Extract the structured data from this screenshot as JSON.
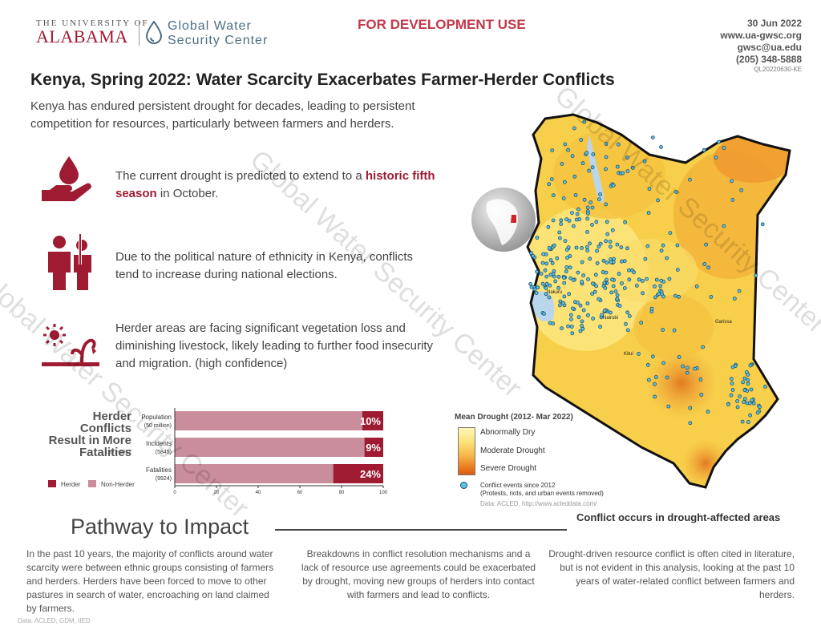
{
  "header": {
    "university_line1": "THE UNIVERSITY OF",
    "university_line2": "ALABAMA",
    "center_name": "Global Water Security Center",
    "dev_use": "FOR DEVELOPMENT USE",
    "date": "30 Jun 2022",
    "website": "www.ua-gwsc.org",
    "email": "gwsc@ua.edu",
    "phone": "(205) 348-5888",
    "doc_code": "QL20220630-KE"
  },
  "title": "Kenya, Spring 2022: Water Scarcity Exacerbates Farmer-Herder Conflicts",
  "intro": "Kenya has endured persistent drought for decades, leading to persistent competition for resources, particularly between farmers and herders.",
  "bullets": [
    {
      "icon": "water-drop-hand-icon",
      "pre": "The current drought is predicted to extend to a ",
      "highlight": "historic fifth season",
      "post": " in October."
    },
    {
      "icon": "armed-people-icon",
      "text": "Due to the political nature of ethnicity in Kenya, conflicts tend to increase during national elections."
    },
    {
      "icon": "wilted-plant-icon",
      "text": "Herder areas are facing significant vegetation loss and diminishing livestock, likely leading to further food insecurity and migration. (high confidence)"
    }
  ],
  "chart": {
    "title": "Herder Conflicts Result in More Fatalities",
    "years": "1997-2017",
    "legend": [
      "Herder",
      "Non-Herder"
    ]
  },
  "chart_data": {
    "type": "bar",
    "orientation": "horizontal",
    "stacked": true,
    "categories": [
      "Population\n(50 million)",
      "Incidents\n(5845)",
      "Fatalities\n(9924)"
    ],
    "series": [
      {
        "name": "Non-Herder",
        "values": [
          90,
          91,
          76
        ]
      },
      {
        "name": "Herder",
        "values": [
          10,
          9,
          24
        ]
      }
    ],
    "data_labels": [
      "10%",
      "9%",
      "24%"
    ],
    "xlim": [
      0,
      100
    ],
    "xticks": [
      0,
      20,
      40,
      60,
      80,
      100
    ],
    "colors": {
      "Herder": "#9e1b32",
      "Non-Herder": "#c98d9b"
    }
  },
  "pathway": {
    "title": "Pathway to Impact",
    "columns": [
      "In the past 10 years, the majority of conflicts around water scarcity were between ethnic groups consisting of farmers and herders. Herders have been forced to move to other pastures in search of water, encroaching on land claimed by farmers.",
      "Breakdowns in conflict resolution mechanisms and a lack of resource use agreements could be exacerbated by drought, moving new groups of herders into contact with farmers and lead to conflicts.",
      "Drought-driven resource conflict is often cited in literature, but is not evident in this analysis, looking at the past 10 years of water-related conflict between farmers and herders."
    ]
  },
  "map": {
    "legend_title": "Mean Drought (2012- Mar 2022)",
    "levels": [
      "Abnormally Dry",
      "Moderate Drought",
      "Severe Drought"
    ],
    "dots_label": "Conflict events since 2012",
    "dots_sublabel": "(Protests, riots, and urban events removed)",
    "source": "Data: ACLED, http://www.acleddata.com/",
    "caption": "Conflict occurs in drought-affected areas",
    "cities": [
      "Nakuru",
      "Nairobi",
      "Garissa",
      "Kitui"
    ]
  },
  "footer": "Data: ACLED, GDM, IIED",
  "watermark": "Global Water Security Center",
  "colors": {
    "accent": "#9e1b32",
    "dev_use": "#c0394b",
    "dot": "#5fc3e6"
  }
}
